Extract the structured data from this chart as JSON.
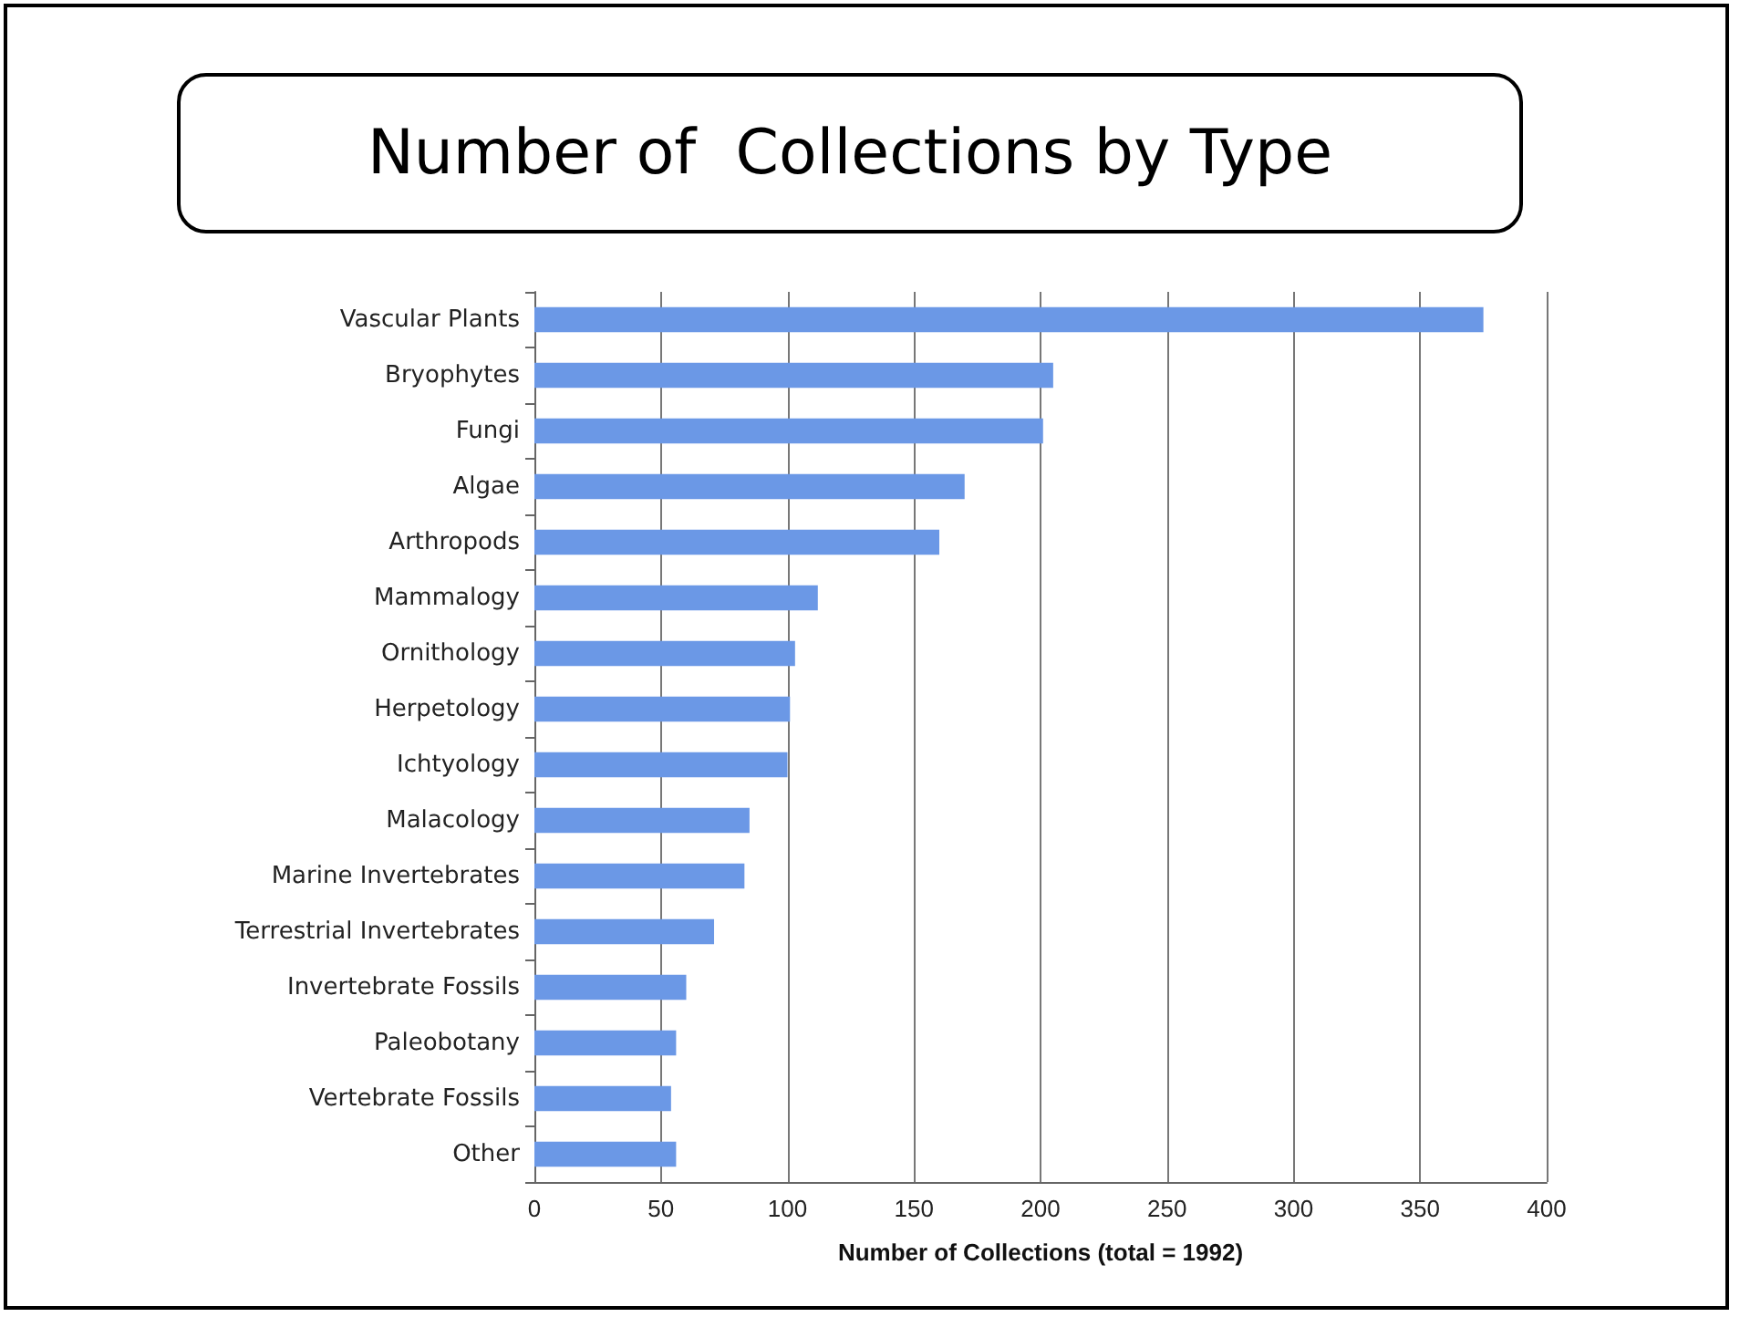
{
  "chart_data": {
    "type": "bar",
    "orientation": "horizontal",
    "title": "Number of  Collections by Type",
    "xlabel": "Number of Collections (total = 1992)",
    "categories": [
      "Vascular Plants",
      "Bryophytes",
      "Fungi",
      "Algae",
      "Arthropods",
      "Mammalogy",
      "Ornithology",
      "Herpetology",
      "Ichtyology",
      "Malacology",
      "Marine Invertebrates",
      "Terrestrial Invertebrates",
      "Invertebrate Fossils",
      "Paleobotany",
      "Vertebrate Fossils",
      "Other"
    ],
    "values": [
      375,
      205,
      201,
      170,
      160,
      112,
      103,
      101,
      100,
      85,
      83,
      71,
      60,
      56,
      54,
      56
    ],
    "color": "#6b98e6",
    "xlim": [
      0,
      400
    ],
    "xticks": [
      0,
      50,
      100,
      150,
      200,
      250,
      300,
      350,
      400
    ],
    "grid": "x"
  }
}
